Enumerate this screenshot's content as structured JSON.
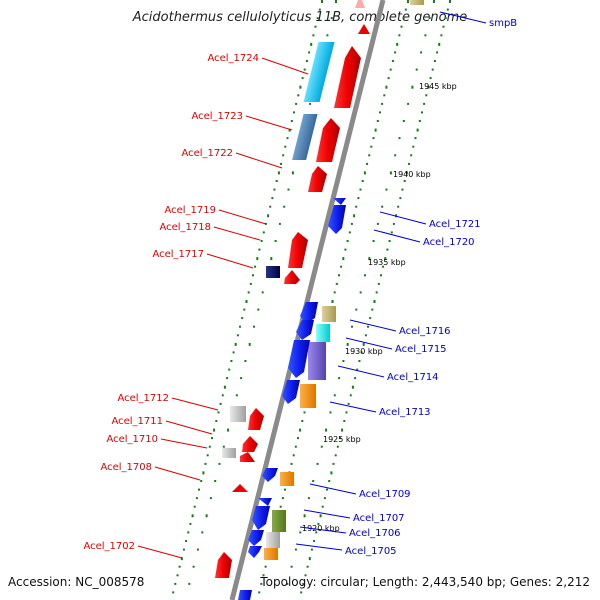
{
  "title": "Acidothermus cellulolyticus 11B, complete genome",
  "footer": {
    "accession": "Accession: NC_008578",
    "topology": "Topology: circular; Length: 2,443,540 bp; Genes: 2,212"
  },
  "colors": {
    "forward_label": "#dd0000",
    "reverse_label": "#0000cc",
    "backbone": "#888888",
    "tick": "#1a7a1a"
  },
  "scale_ticks": [
    {
      "kbp": 1945,
      "label": "1945 kbp"
    },
    {
      "kbp": 1940,
      "label": "1940 kbp"
    },
    {
      "kbp": 1935,
      "label": "1935 kbp"
    },
    {
      "kbp": 1930,
      "label": "1930 kbp"
    },
    {
      "kbp": 1925,
      "label": "1925 kbp"
    },
    {
      "kbp": 1920,
      "label": "1920 kbp"
    }
  ],
  "forward_genes": [
    {
      "label": "Acel_1724"
    },
    {
      "label": "Acel_1723"
    },
    {
      "label": "Acel_1722"
    },
    {
      "label": "Acel_1719"
    },
    {
      "label": "Acel_1718"
    },
    {
      "label": "Acel_1717"
    },
    {
      "label": "Acel_1712"
    },
    {
      "label": "Acel_1711"
    },
    {
      "label": "Acel_1710"
    },
    {
      "label": "Acel_1708"
    },
    {
      "label": "Acel_1702"
    }
  ],
  "reverse_genes": [
    {
      "label": "smpB"
    },
    {
      "label": "Acel_1721"
    },
    {
      "label": "Acel_1720"
    },
    {
      "label": "Acel_1716"
    },
    {
      "label": "Acel_1715"
    },
    {
      "label": "Acel_1714"
    },
    {
      "label": "Acel_1713"
    },
    {
      "label": "Acel_1709"
    },
    {
      "label": "Acel_1707"
    },
    {
      "label": "Acel_1706"
    },
    {
      "label": "Acel_1705"
    }
  ]
}
